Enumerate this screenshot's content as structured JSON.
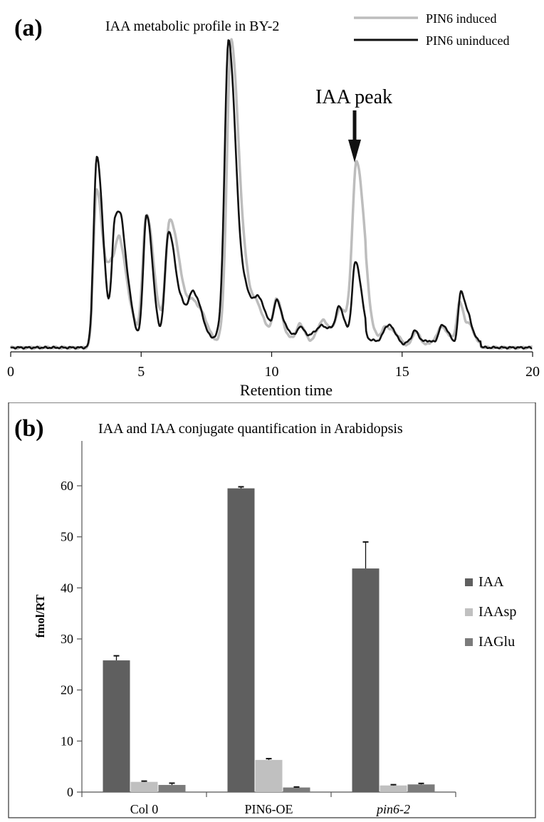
{
  "panel_a": {
    "letter": "(a)",
    "chart_data": {
      "type": "line",
      "title": "IAA metabolic profile in BY-2",
      "xlabel": "Retention time",
      "ylabel": "",
      "xlim": [
        0,
        20
      ],
      "ylim": [
        0,
        100
      ],
      "xticks": [
        "0",
        "5",
        "10",
        "15",
        "20"
      ],
      "grid": false,
      "legend_position": "top-right",
      "annotation": {
        "text": "IAA peak",
        "x": 13.2
      },
      "series": [
        {
          "name": "PIN6 induced",
          "color": "#bdbdbd",
          "peaks": [
            [
              3.3,
              50,
              0.12
            ],
            [
              3.9,
              22,
              0.2
            ],
            [
              4.2,
              18,
              0.15
            ],
            [
              5.2,
              42,
              0.14
            ],
            [
              6.1,
              40,
              0.16
            ],
            [
              6.6,
              6,
              0.2
            ],
            [
              7.0,
              10,
              0.2
            ],
            [
              8.45,
              98,
              0.16
            ],
            [
              9.1,
              10,
              0.2
            ],
            [
              9.5,
              6,
              0.15
            ],
            [
              10.2,
              12,
              0.12
            ],
            [
              11.1,
              4,
              0.1
            ],
            [
              12.0,
              5,
              0.2
            ],
            [
              12.6,
              8,
              0.15
            ],
            [
              13.25,
              59,
              0.16
            ],
            [
              14.4,
              6,
              0.15
            ],
            [
              15.5,
              3,
              0.1
            ],
            [
              16.5,
              6,
              0.12
            ],
            [
              17.2,
              14,
              0.1
            ],
            [
              17.6,
              4,
              0.1
            ]
          ]
        },
        {
          "name": "PIN6 uninduced",
          "color": "#111111",
          "peaks": [
            [
              3.3,
              60,
              0.12
            ],
            [
              4.0,
              38,
              0.12
            ],
            [
              4.3,
              20,
              0.15
            ],
            [
              5.2,
              40,
              0.12
            ],
            [
              6.05,
              35,
              0.14
            ],
            [
              6.6,
              8,
              0.15
            ],
            [
              7.0,
              12,
              0.18
            ],
            [
              8.35,
              99,
              0.15
            ],
            [
              9.1,
              12,
              0.2
            ],
            [
              9.5,
              8,
              0.15
            ],
            [
              10.2,
              13,
              0.12
            ],
            [
              11.1,
              5,
              0.1
            ],
            [
              12.0,
              5,
              0.2
            ],
            [
              12.6,
              8,
              0.12
            ],
            [
              13.2,
              25,
              0.12
            ],
            [
              14.4,
              6,
              0.15
            ],
            [
              15.5,
              4,
              0.1
            ],
            [
              16.5,
              6,
              0.12
            ],
            [
              17.25,
              17,
              0.1
            ],
            [
              17.6,
              5,
              0.1
            ]
          ]
        }
      ]
    }
  },
  "panel_b": {
    "letter": "(b)",
    "chart_data": {
      "type": "bar",
      "title": "IAA  and IAA conjugate quantification in Arabidopsis",
      "xlabel": "",
      "ylabel": "fmol/RT",
      "ylim": [
        0,
        60
      ],
      "yticks": [
        "0",
        "10",
        "20",
        "30",
        "40",
        "50",
        "60"
      ],
      "categories": [
        "Col 0",
        "PIN6-OE",
        "pin6-2"
      ],
      "italic_categories": [
        false,
        false,
        true
      ],
      "grid": false,
      "legend_position": "right",
      "series": [
        {
          "name": "IAA",
          "color": "#5f5f5f",
          "values": [
            25.8,
            59.5,
            43.8
          ],
          "errors": [
            0.9,
            0.3,
            5.2
          ]
        },
        {
          "name": "IAAsp",
          "color": "#c0c0c0",
          "values": [
            2.0,
            6.3,
            1.3
          ],
          "errors": [
            0.15,
            0.25,
            0.15
          ]
        },
        {
          "name": "IAGlu",
          "color": "#7b7b7b",
          "values": [
            1.4,
            0.9,
            1.5
          ],
          "errors": [
            0.35,
            0.1,
            0.2
          ]
        }
      ]
    }
  }
}
